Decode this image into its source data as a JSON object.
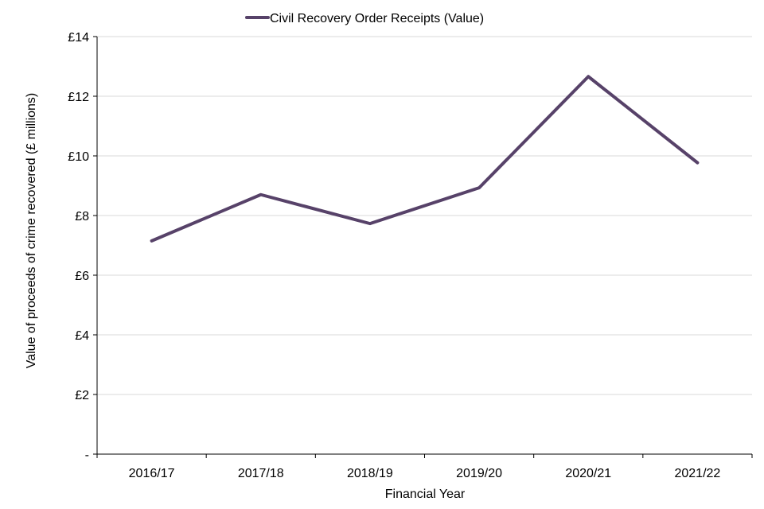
{
  "chart_data": {
    "type": "line",
    "categories": [
      "2016/17",
      "2017/18",
      "2018/19",
      "2019/20",
      "2020/21",
      "2021/22"
    ],
    "series": [
      {
        "name": "Civil Recovery Order Receipts (Value)",
        "values": [
          7.15,
          8.7,
          7.73,
          8.93,
          12.66,
          9.77
        ],
        "color": "#574269"
      }
    ],
    "xlabel": "Financial Year",
    "ylabel": "Value of proceeds of crime recovered  (£ millions)",
    "ylim": [
      0,
      14
    ],
    "yticks": [
      0,
      2,
      4,
      6,
      8,
      10,
      12,
      14
    ],
    "ytick_labels": [
      "-",
      "£2",
      "£4",
      "£6",
      "£8",
      "£10",
      "£12",
      "£14"
    ],
    "grid": true,
    "legend_position": "top"
  }
}
